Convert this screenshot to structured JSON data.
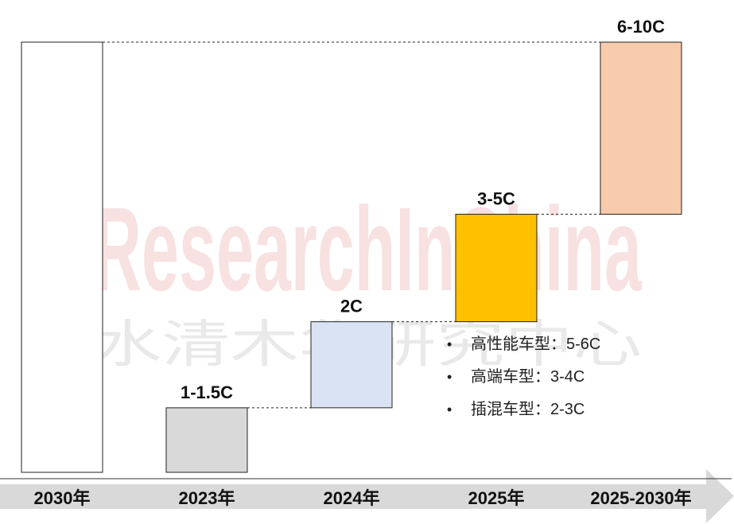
{
  "chart_data": {
    "type": "waterfall",
    "unit": "C",
    "bars": [
      {
        "category": "2030年",
        "label": "",
        "range": [
          0,
          10
        ],
        "color": "#ffffff"
      },
      {
        "category": "2023年",
        "label": "1-1.5C",
        "range": [
          0,
          1.5
        ],
        "color": "#d9d9d9"
      },
      {
        "category": "2024年",
        "label": "2C",
        "range": [
          1.5,
          3.5
        ],
        "color": "#dae3f3"
      },
      {
        "category": "2025年",
        "label": "3-5C",
        "range": [
          3.5,
          6.0
        ],
        "color": "#ffc000"
      },
      {
        "category": "2025-2030年",
        "label": "6-10C",
        "range": [
          6.0,
          10
        ],
        "color": "#f8cbad"
      }
    ],
    "ylim": [
      0,
      10
    ],
    "grid": false,
    "notes": [
      "高性能车型：5-6C",
      "高端车型：3-4C",
      "插混车型：2-3C"
    ]
  },
  "watermark": {
    "en": "ResearchInChina",
    "cn": "水清木华研究中心"
  },
  "colors": {
    "axis_band": "#d9d9d9",
    "axis_line": "#333333",
    "bar_stroke": "#222222",
    "connector": "#222222"
  }
}
